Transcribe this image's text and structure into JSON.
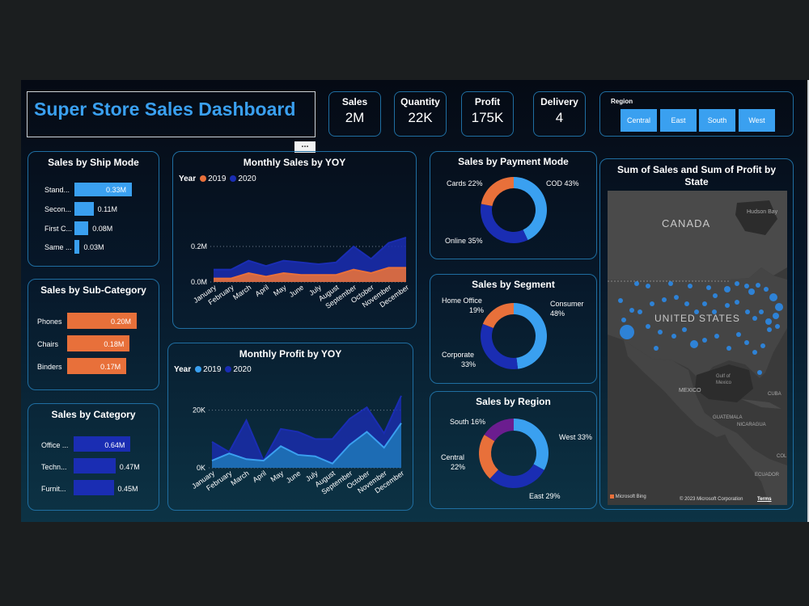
{
  "title": "Super Store Sales Dashboard",
  "kpis": [
    {
      "label": "Sales",
      "value": "2M"
    },
    {
      "label": "Quantity",
      "value": "22K"
    },
    {
      "label": "Profit",
      "value": "175K"
    },
    {
      "label": "Delivery",
      "value": "4"
    }
  ],
  "region_slicer": {
    "label": "Region",
    "options": [
      "Central",
      "East",
      "South",
      "West"
    ]
  },
  "more_options": "...",
  "colors": {
    "y2019": "#e8703a",
    "y2020": "#1a2db3",
    "light_blue": "#3aa0f0",
    "orange": "#e8703a",
    "navy": "#1a2db3",
    "purple": "#6b1d8f"
  },
  "ship_mode": {
    "title": "Sales by Ship Mode",
    "items": [
      {
        "label": "Stand...",
        "value": 0.33,
        "text": "0.33M"
      },
      {
        "label": "Secon...",
        "value": 0.11,
        "text": "0.11M"
      },
      {
        "label": "First C...",
        "value": 0.08,
        "text": "0.08M"
      },
      {
        "label": "Same ...",
        "value": 0.03,
        "text": "0.03M"
      }
    ]
  },
  "sub_category": {
    "title": "Sales by Sub-Category",
    "items": [
      {
        "label": "Phones",
        "value": 0.2,
        "text": "0.20M"
      },
      {
        "label": "Chairs",
        "value": 0.18,
        "text": "0.18M"
      },
      {
        "label": "Binders",
        "value": 0.17,
        "text": "0.17M"
      }
    ]
  },
  "category": {
    "title": "Sales by Category",
    "items": [
      {
        "label": "Office ...",
        "value": 0.64,
        "text": "0.64M"
      },
      {
        "label": "Techn...",
        "value": 0.47,
        "text": "0.47M"
      },
      {
        "label": "Furnit...",
        "value": 0.45,
        "text": "0.45M"
      }
    ]
  },
  "monthly_sales": {
    "title": "Monthly Sales by YOY",
    "legend_title": "Year",
    "series_names": [
      "2019",
      "2020"
    ],
    "y_ticks": [
      "0.2M",
      "0.0M"
    ]
  },
  "monthly_profit": {
    "title": "Monthly Profit by YOY",
    "legend_title": "Year",
    "series_names": [
      "2019",
      "2020"
    ],
    "y_ticks": [
      "20K",
      "0K"
    ]
  },
  "payment": {
    "title": "Sales by Payment Mode",
    "labels": [
      "COD 43%",
      "Online 35%",
      "Cards 22%"
    ]
  },
  "segment": {
    "title": "Sales by Segment",
    "labels": [
      "Consumer",
      "48%",
      "Corporate",
      "33%",
      "Home Office",
      "19%"
    ]
  },
  "region": {
    "title": "Sales by Region",
    "labels": [
      "West 33%",
      "East 29%",
      "Central",
      "22%",
      "South 16%"
    ]
  },
  "map": {
    "title": "Sum of Sales and Sum of Profit by State",
    "labels": [
      "CANADA",
      "UNITED STATES",
      "MEXICO",
      "Hudson Bay",
      "Gulf of Mexico",
      "GUATEMALA",
      "NICARAGUA",
      "CUBA",
      "ECUADOR",
      "COL"
    ],
    "attribution": "© 2023 Microsoft Corporation",
    "terms": "Terms",
    "logo": "Microsoft Bing"
  },
  "chart_data": [
    {
      "type": "bar",
      "title": "Sales by Ship Mode",
      "categories": [
        "Stand...",
        "Secon...",
        "First C...",
        "Same ..."
      ],
      "values": [
        0.33,
        0.11,
        0.08,
        0.03
      ]
    },
    {
      "type": "bar",
      "title": "Sales by Sub-Category",
      "categories": [
        "Phones",
        "Chairs",
        "Binders"
      ],
      "values": [
        0.2,
        0.18,
        0.17
      ]
    },
    {
      "type": "bar",
      "title": "Sales by Category",
      "categories": [
        "Office ...",
        "Techn...",
        "Furnit..."
      ],
      "values": [
        0.64,
        0.47,
        0.45
      ]
    },
    {
      "type": "area",
      "title": "Monthly Sales by YOY",
      "categories": [
        "January",
        "February",
        "March",
        "April",
        "May",
        "June",
        "July",
        "August",
        "September",
        "October",
        "November",
        "December"
      ],
      "ylim": [
        0,
        0.3
      ],
      "series": [
        {
          "name": "2019",
          "values": [
            0.02,
            0.02,
            0.05,
            0.03,
            0.05,
            0.04,
            0.04,
            0.04,
            0.07,
            0.05,
            0.08,
            0.08
          ]
        },
        {
          "name": "2020",
          "values": [
            0.07,
            0.07,
            0.12,
            0.09,
            0.12,
            0.11,
            0.1,
            0.11,
            0.2,
            0.13,
            0.22,
            0.25
          ]
        }
      ]
    },
    {
      "type": "area",
      "title": "Monthly Profit by YOY",
      "categories": [
        "January",
        "February",
        "March",
        "April",
        "May",
        "June",
        "July",
        "August",
        "September",
        "October",
        "November",
        "December"
      ],
      "ylim": [
        0,
        30
      ],
      "series": [
        {
          "name": "2019",
          "values": [
            2.5,
            5,
            3,
            2.5,
            7.5,
            4.5,
            4,
            1.5,
            8,
            12.5,
            7,
            15.5
          ]
        },
        {
          "name": "2020",
          "values": [
            9,
            5.5,
            16.5,
            2.5,
            13.5,
            12.5,
            10,
            10,
            17,
            21,
            12,
            25
          ]
        }
      ]
    },
    {
      "type": "pie",
      "title": "Sales by Payment Mode",
      "categories": [
        "COD",
        "Online",
        "Cards"
      ],
      "values": [
        43,
        35,
        22
      ]
    },
    {
      "type": "pie",
      "title": "Sales by Segment",
      "categories": [
        "Consumer",
        "Corporate",
        "Home Office"
      ],
      "values": [
        48,
        33,
        19
      ]
    },
    {
      "type": "pie",
      "title": "Sales by Region",
      "categories": [
        "West",
        "East",
        "Central",
        "South"
      ],
      "values": [
        33,
        29,
        22,
        16
      ]
    }
  ]
}
